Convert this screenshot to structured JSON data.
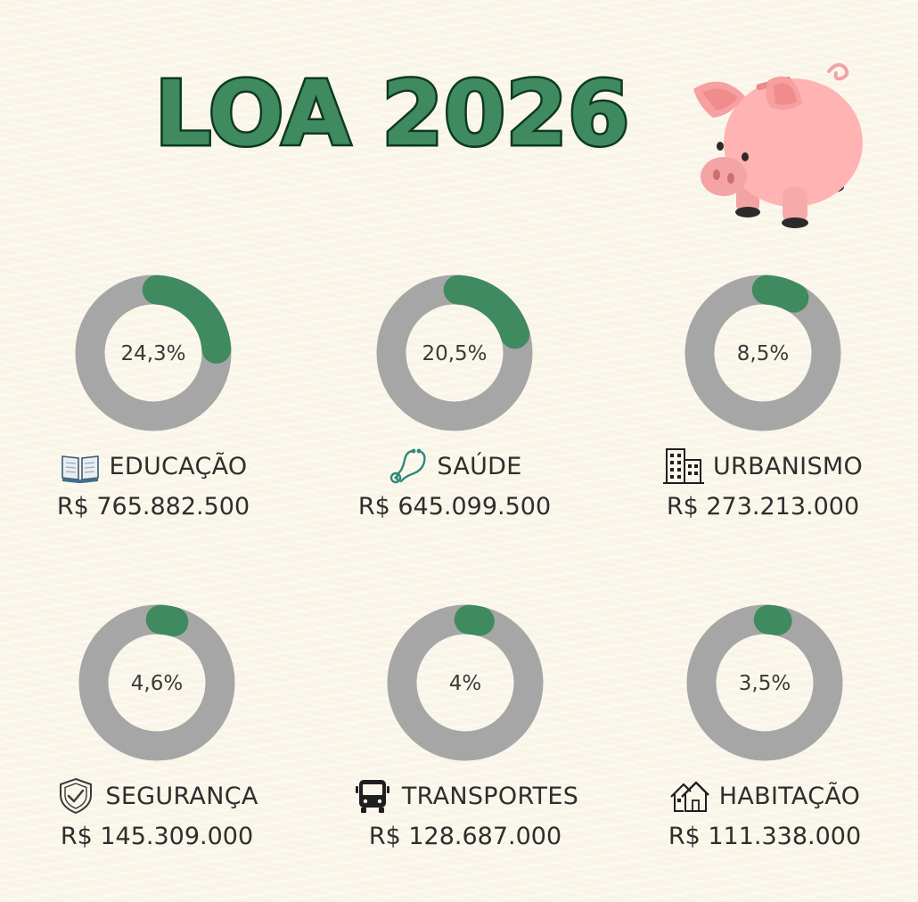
{
  "title": "LOA 2026",
  "colors": {
    "background": "#fbf6ea",
    "accent": "#3f8a5e",
    "track": "#a6a6a6",
    "text": "#2e2e2e"
  },
  "illustration": "piggy-bank",
  "chart_data": {
    "type": "donut",
    "title": "LOA 2026",
    "ring_max": 100,
    "items": [
      {
        "label": "EDUCAÇÃO",
        "percent_label": "24,3%",
        "value": 24.3,
        "amount": "R$ 765.882.500",
        "icon": "book-icon"
      },
      {
        "label": "SAÚDE",
        "percent_label": "20,5%",
        "value": 20.5,
        "amount": "R$ 645.099.500",
        "icon": "stethoscope-icon"
      },
      {
        "label": "URBANISMO",
        "percent_label": "8,5%",
        "value": 8.5,
        "amount": "R$ 273.213.000",
        "icon": "buildings-icon"
      },
      {
        "label": "SEGURANÇA",
        "percent_label": "4,6%",
        "value": 4.6,
        "amount": "R$ 145.309.000",
        "icon": "shield-check-icon"
      },
      {
        "label": "TRANSPORTES",
        "percent_label": "4%",
        "value": 4,
        "amount": "R$ 128.687.000",
        "icon": "bus-icon"
      },
      {
        "label": "HABITAÇÃO",
        "percent_label": "3,5%",
        "value": 3.5,
        "amount": "R$ 111.338.000",
        "icon": "houses-icon"
      }
    ]
  }
}
